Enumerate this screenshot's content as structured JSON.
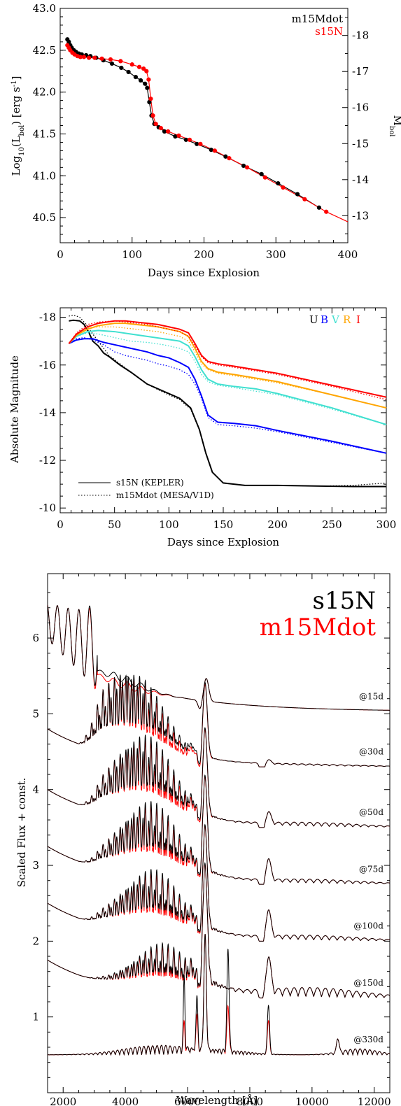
{
  "chart_data": [
    {
      "type": "scatter",
      "xlabel": "Days since Explosion",
      "ylabel": "Log10(Lbol) [erg s-1]",
      "ylabel_parts": {
        "a": "Log",
        "b": "10",
        "c": "(L",
        "d": "bol",
        "e": ") [erg s",
        "f": "-1",
        "g": "]"
      },
      "y2label_parts": {
        "a": "M",
        "b": "bol"
      },
      "xlim": [
        0,
        400
      ],
      "ylim": [
        40.2,
        43.0
      ],
      "y2lim": [
        -12.25,
        -18.75
      ],
      "xticks": [
        "0",
        "100",
        "200",
        "300",
        "400"
      ],
      "yticks": [
        "40.5",
        "41.0",
        "41.5",
        "42.0",
        "42.5",
        "43.0"
      ],
      "y2ticks": [
        "-13",
        "-14",
        "-15",
        "-16",
        "-17",
        "-18"
      ],
      "legend_position": "top-right",
      "series": [
        {
          "name": "m15Mdot",
          "color": "#000000",
          "x": [
            10,
            12,
            14,
            16,
            19,
            22,
            26,
            30,
            36,
            42,
            50,
            60,
            72,
            85,
            95,
            105,
            112,
            118,
            121,
            124,
            127,
            131,
            137,
            145,
            160,
            175,
            190,
            210,
            230,
            255,
            280,
            303,
            330,
            360
          ],
          "y": [
            42.63,
            42.6,
            42.56,
            42.53,
            42.5,
            42.48,
            42.46,
            42.45,
            42.44,
            42.43,
            42.41,
            42.38,
            42.34,
            42.29,
            42.24,
            42.18,
            42.14,
            42.1,
            42.05,
            41.88,
            41.72,
            41.62,
            41.58,
            41.53,
            41.47,
            41.43,
            41.38,
            41.31,
            41.23,
            41.12,
            41.02,
            40.91,
            40.78,
            40.62
          ]
        },
        {
          "name": "s15N",
          "color": "#ff0000",
          "x": [
            10,
            12,
            14,
            17,
            20,
            24,
            28,
            33,
            40,
            48,
            58,
            70,
            84,
            100,
            110,
            116,
            120,
            123,
            126,
            129,
            133,
            140,
            150,
            165,
            180,
            195,
            215,
            235,
            260,
            285,
            310,
            340,
            370
          ],
          "y": [
            42.56,
            42.53,
            42.5,
            42.47,
            42.45,
            42.43,
            42.42,
            42.42,
            42.41,
            42.41,
            42.4,
            42.39,
            42.37,
            42.33,
            42.3,
            42.28,
            42.25,
            42.15,
            41.92,
            41.72,
            41.62,
            41.57,
            41.53,
            41.48,
            41.43,
            41.38,
            41.3,
            41.21,
            41.1,
            40.98,
            40.86,
            40.72,
            40.57
          ]
        }
      ]
    },
    {
      "type": "line",
      "xlabel": "Days since Explosion",
      "ylabel": "Absolute Magnitude",
      "xlim": [
        0,
        300
      ],
      "ylim": [
        -9.8,
        -18.4
      ],
      "xticks": [
        "0",
        "50",
        "100",
        "150",
        "200",
        "250",
        "300"
      ],
      "yticks": [
        "-10",
        "-12",
        "-14",
        "-16",
        "-18"
      ],
      "band_legend_position": "top-right",
      "model_legend_position": "bottom-left",
      "models": [
        {
          "name": "s15N (KEPLER)",
          "style": "solid"
        },
        {
          "name": "m15Mdot (MESA/V1D)",
          "style": "dotted"
        }
      ],
      "bands": [
        {
          "name": "U",
          "color": "#000000",
          "solid": {
            "x": [
              8,
              12,
              18,
              22,
              26,
              30,
              35,
              40,
              45,
              55,
              65,
              80,
              95,
              110,
              120,
              128,
              134,
              140,
              150,
              170,
              200,
              240,
              270,
              300
            ],
            "y": [
              -17.85,
              -17.88,
              -17.85,
              -17.7,
              -17.4,
              -17.0,
              -16.8,
              -16.5,
              -16.35,
              -16.0,
              -15.7,
              -15.2,
              -14.9,
              -14.6,
              -14.2,
              -13.3,
              -12.3,
              -11.5,
              -11.05,
              -10.95,
              -10.95,
              -10.92,
              -10.9,
              -10.9
            ]
          },
          "dotted": {
            "x": [
              8,
              12,
              18,
              24,
              30,
              35,
              40,
              45,
              55,
              65,
              80,
              95,
              110,
              120,
              128,
              134,
              140,
              150,
              170,
              200,
              240,
              270,
              300
            ],
            "y": [
              -18.05,
              -18.1,
              -18.0,
              -17.7,
              -17.3,
              -17.0,
              -16.7,
              -16.4,
              -16.05,
              -15.7,
              -15.2,
              -14.85,
              -14.55,
              -14.15,
              -13.3,
              -12.3,
              -11.5,
              -11.05,
              -10.95,
              -10.95,
              -10.92,
              -10.95,
              -11.05
            ]
          }
        },
        {
          "name": "B",
          "color": "#0000ff",
          "solid": {
            "x": [
              8,
              15,
              22,
              30,
              40,
              50,
              60,
              70,
              80,
              90,
              100,
              110,
              118,
              124,
              130,
              136,
              145,
              160,
              180,
              200,
              250,
              300
            ],
            "y": [
              -16.9,
              -17.05,
              -17.1,
              -17.1,
              -16.95,
              -16.85,
              -16.75,
              -16.65,
              -16.55,
              -16.4,
              -16.3,
              -16.1,
              -15.9,
              -15.4,
              -14.7,
              -13.9,
              -13.6,
              -13.55,
              -13.45,
              -13.25,
              -12.8,
              -12.3
            ]
          },
          "dotted": {
            "x": [
              8,
              15,
              22,
              30,
              40,
              50,
              60,
              70,
              80,
              90,
              100,
              110,
              118,
              124,
              130,
              136,
              145,
              160,
              180,
              200,
              250,
              300
            ],
            "y": [
              -16.9,
              -17.1,
              -17.15,
              -17.05,
              -16.85,
              -16.55,
              -16.4,
              -16.3,
              -16.2,
              -16.05,
              -15.95,
              -15.8,
              -15.6,
              -15.2,
              -14.6,
              -13.8,
              -13.5,
              -13.45,
              -13.35,
              -13.2,
              -12.75,
              -12.3
            ]
          }
        },
        {
          "name": "V",
          "color": "#40e0d0",
          "solid": {
            "x": [
              8,
              15,
              25,
              35,
              50,
              65,
              80,
              95,
              110,
              118,
              124,
              130,
              136,
              145,
              160,
              180,
              200,
              250,
              300
            ],
            "y": [
              -16.9,
              -17.2,
              -17.4,
              -17.45,
              -17.4,
              -17.3,
              -17.2,
              -17.1,
              -17.0,
              -16.8,
              -16.35,
              -15.8,
              -15.4,
              -15.2,
              -15.1,
              -15.0,
              -14.8,
              -14.2,
              -13.5
            ]
          },
          "dotted": {
            "x": [
              8,
              15,
              25,
              35,
              50,
              65,
              80,
              95,
              110,
              118,
              124,
              130,
              136,
              145,
              160,
              180,
              200,
              250,
              300
            ],
            "y": [
              -16.9,
              -17.2,
              -17.35,
              -17.3,
              -17.15,
              -17.0,
              -16.95,
              -16.85,
              -16.7,
              -16.55,
              -16.15,
              -15.6,
              -15.3,
              -15.15,
              -15.05,
              -14.9,
              -14.75,
              -14.15,
              -13.5
            ]
          }
        },
        {
          "name": "R",
          "color": "#ffa500",
          "solid": {
            "x": [
              8,
              15,
              25,
              35,
              50,
              60,
              70,
              80,
              90,
              100,
              110,
              118,
              124,
              130,
              136,
              145,
              160,
              180,
              200,
              250,
              300
            ],
            "y": [
              -16.9,
              -17.25,
              -17.5,
              -17.65,
              -17.75,
              -17.75,
              -17.7,
              -17.65,
              -17.6,
              -17.5,
              -17.4,
              -17.2,
              -16.7,
              -16.15,
              -15.85,
              -15.7,
              -15.6,
              -15.45,
              -15.3,
              -14.75,
              -14.2
            ]
          },
          "dotted": {
            "x": [
              8,
              15,
              25,
              35,
              50,
              60,
              70,
              80,
              90,
              100,
              110,
              118,
              124,
              130,
              136,
              145,
              160,
              180,
              200,
              250,
              300
            ],
            "y": [
              -16.9,
              -17.3,
              -17.55,
              -17.6,
              -17.6,
              -17.55,
              -17.5,
              -17.45,
              -17.4,
              -17.3,
              -17.2,
              -17.0,
              -16.55,
              -16.05,
              -15.8,
              -15.65,
              -15.55,
              -15.4,
              -15.25,
              -14.75,
              -14.2
            ]
          }
        },
        {
          "name": "I",
          "color": "#ff0000",
          "solid": {
            "x": [
              8,
              15,
              25,
              35,
              50,
              60,
              70,
              80,
              90,
              100,
              110,
              118,
              124,
              130,
              136,
              145,
              160,
              180,
              200,
              250,
              300
            ],
            "y": [
              -16.9,
              -17.3,
              -17.6,
              -17.75,
              -17.85,
              -17.85,
              -17.8,
              -17.75,
              -17.7,
              -17.6,
              -17.5,
              -17.35,
              -16.9,
              -16.4,
              -16.15,
              -16.05,
              -15.95,
              -15.8,
              -15.65,
              -15.15,
              -14.65
            ]
          },
          "dotted": {
            "x": [
              8,
              15,
              25,
              35,
              50,
              60,
              70,
              80,
              90,
              100,
              110,
              118,
              124,
              130,
              136,
              145,
              160,
              180,
              200,
              250,
              300
            ],
            "y": [
              -16.9,
              -17.35,
              -17.7,
              -17.8,
              -17.85,
              -17.8,
              -17.75,
              -17.7,
              -17.6,
              -17.5,
              -17.4,
              -17.2,
              -16.8,
              -16.35,
              -16.1,
              -16.0,
              -15.9,
              -15.75,
              -15.6,
              -15.1,
              -14.55
            ]
          }
        }
      ]
    },
    {
      "type": "line",
      "xlabel": "Wavelength [Å]",
      "xlabel_parts": {
        "a": "Wavelength  [",
        "b": "Å",
        "c": "]"
      },
      "ylabel": "Scaled Flux + const.",
      "xlim": [
        1500,
        12500
      ],
      "ylim": [
        0.0,
        6.85
      ],
      "xticks": [
        "2000",
        "4000",
        "6000",
        "8000",
        "10000",
        "12000"
      ],
      "yticks": [
        "1",
        "2",
        "3",
        "4",
        "5",
        "6"
      ],
      "legend_position": "top-right",
      "models": [
        {
          "name": "s15N",
          "color": "#000000"
        },
        {
          "name": "m15Mdot",
          "color": "#ff0000"
        }
      ],
      "epochs": [
        {
          "label": "@15d",
          "offset": 5.03
        },
        {
          "label": "@30d",
          "offset": 4.3
        },
        {
          "label": "@50d",
          "offset": 3.5
        },
        {
          "label": "@75d",
          "offset": 2.75
        },
        {
          "label": "@100d",
          "offset": 2.0
        },
        {
          "label": "@150d",
          "offset": 1.25
        },
        {
          "label": "@330d",
          "offset": 0.5
        }
      ]
    }
  ]
}
